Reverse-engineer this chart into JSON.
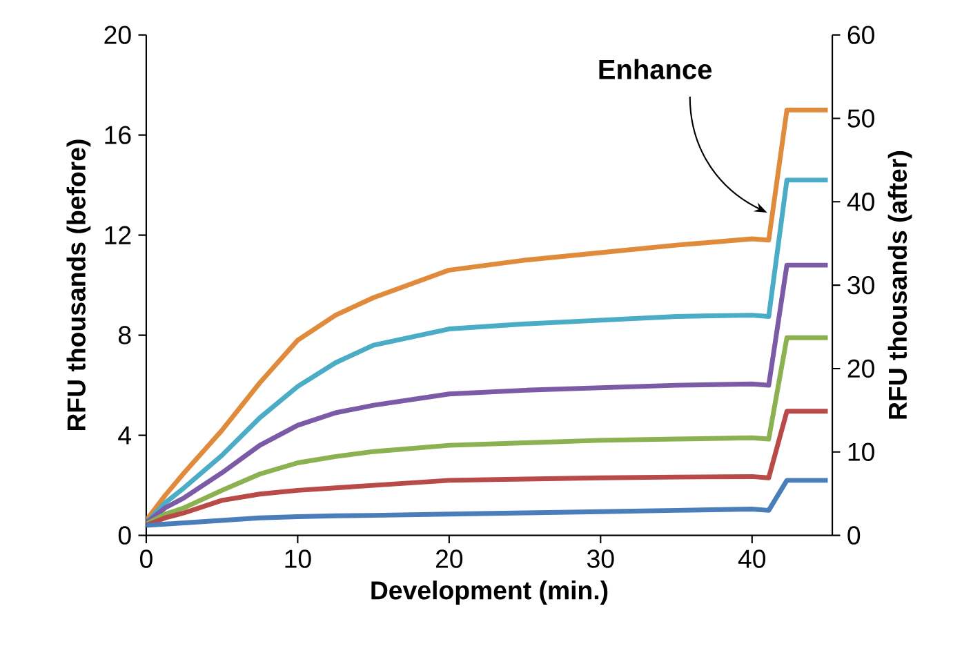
{
  "chart_data": {
    "type": "line",
    "xlabel": "Development (min.)",
    "ylabel": "RFU thousands (before)",
    "y2label": "RFU thousands (after)",
    "x": [
      0,
      1.25,
      2.5,
      5,
      7.5,
      10,
      12.5,
      15,
      20,
      25,
      30,
      35,
      40,
      41.1,
      42.3,
      45
    ],
    "series": [
      {
        "color": "#e08a3c",
        "values": [
          0.6,
          1.6,
          2.5,
          4.2,
          6.1,
          7.8,
          8.8,
          9.5,
          10.6,
          11.0,
          11.3,
          11.6,
          11.85,
          11.8,
          17.0,
          17.0
        ]
      },
      {
        "color": "#4bacc6",
        "values": [
          0.5,
          1.3,
          1.9,
          3.2,
          4.7,
          5.95,
          6.9,
          7.6,
          8.25,
          8.45,
          8.6,
          8.75,
          8.8,
          8.75,
          14.2,
          14.2
        ]
      },
      {
        "color": "#7b5aa6",
        "values": [
          0.5,
          1.1,
          1.5,
          2.5,
          3.6,
          4.4,
          4.9,
          5.2,
          5.65,
          5.8,
          5.9,
          6.0,
          6.05,
          6.0,
          10.8,
          10.8
        ]
      },
      {
        "color": "#8bb151",
        "values": [
          0.45,
          0.85,
          1.1,
          1.8,
          2.45,
          2.9,
          3.15,
          3.35,
          3.6,
          3.7,
          3.8,
          3.85,
          3.9,
          3.85,
          7.9,
          7.9
        ]
      },
      {
        "color": "#b84a47",
        "values": [
          0.4,
          0.7,
          0.9,
          1.4,
          1.65,
          1.8,
          1.9,
          2.0,
          2.2,
          2.25,
          2.3,
          2.33,
          2.35,
          2.3,
          4.96,
          4.96
        ]
      },
      {
        "color": "#4a7ebb",
        "values": [
          0.4,
          0.45,
          0.5,
          0.6,
          0.7,
          0.75,
          0.78,
          0.8,
          0.85,
          0.9,
          0.95,
          1.0,
          1.05,
          1.0,
          2.2,
          2.2
        ]
      }
    ],
    "xlim": [
      0,
      45.3
    ],
    "xticks": [
      0,
      10,
      20,
      30,
      40
    ],
    "ylim": [
      0,
      20
    ],
    "yticks": [
      0,
      4,
      8,
      12,
      16,
      20
    ],
    "y2lim": [
      0,
      60
    ],
    "y2ticks": [
      0,
      10,
      20,
      30,
      40,
      50,
      60
    ],
    "annotations": [
      {
        "text": "Enhance",
        "x": 41,
        "y": 12.9
      }
    ],
    "grid": false,
    "marker": "none",
    "line_style": "solid"
  }
}
